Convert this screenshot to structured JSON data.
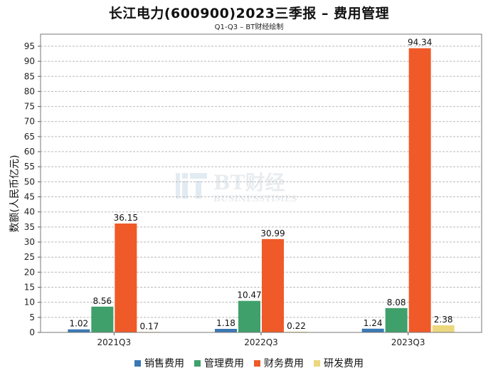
{
  "chart_data": {
    "type": "bar",
    "title": "长江电力(600900)2023三季报 – 费用管理",
    "subtitle": "Q1-Q3 – BT财经绘制",
    "xlabel": "",
    "ylabel": "数额(人民币亿元)",
    "categories": [
      "2021Q3",
      "2022Q3",
      "2023Q3"
    ],
    "ylim": [
      0,
      99
    ],
    "yticks": [
      0,
      5,
      10,
      15,
      20,
      25,
      30,
      35,
      40,
      45,
      50,
      55,
      60,
      65,
      70,
      75,
      80,
      85,
      90,
      95
    ],
    "series": [
      {
        "name": "销售费用",
        "color": "#3a78b4",
        "values": [
          1.02,
          1.18,
          1.24
        ],
        "labels": [
          "1.02",
          "1.18",
          "1.24"
        ]
      },
      {
        "name": "管理费用",
        "color": "#3fa06b",
        "values": [
          8.56,
          10.47,
          8.08
        ],
        "labels": [
          "8.56",
          "10.47",
          "8.08"
        ]
      },
      {
        "name": "财务费用",
        "color": "#f05a28",
        "values": [
          36.15,
          30.99,
          94.34
        ],
        "labels": [
          "36.15",
          "30.99",
          "94.34"
        ]
      },
      {
        "name": "研发费用",
        "color": "#ecd77f",
        "values": [
          0.17,
          0.22,
          2.38
        ],
        "labels": [
          "0.17",
          "0.22",
          "2.38"
        ]
      }
    ],
    "grid": true,
    "legend": "bottom-center"
  },
  "watermark": {
    "main": "BT财经",
    "sub": "BUSINESSTIMES"
  }
}
